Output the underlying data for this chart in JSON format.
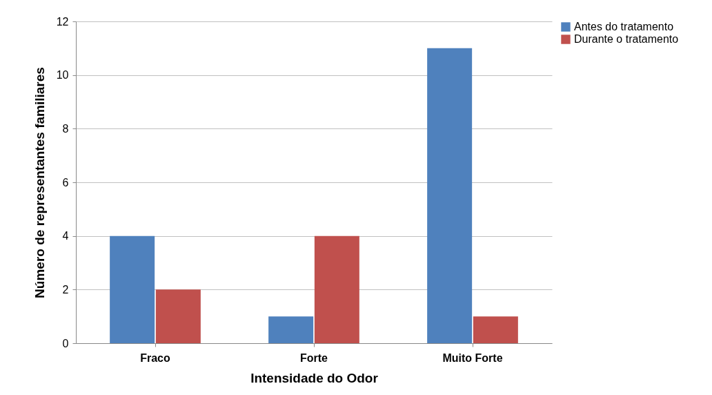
{
  "chart_data": {
    "type": "bar",
    "xlabel": "Intensidade do Odor",
    "ylabel": "Número de representantes familiares",
    "categories": [
      "Fraco",
      "Forte",
      "Muito Forte"
    ],
    "series": [
      {
        "name": "Antes do tratamento",
        "color": "#4f81bd",
        "values": [
          4,
          1,
          11
        ]
      },
      {
        "name": "Durante o tratamento",
        "color": "#c0504d",
        "values": [
          2,
          4,
          1
        ]
      }
    ],
    "ylim": [
      0,
      12
    ],
    "yticks": [
      0,
      2,
      4,
      6,
      8,
      10,
      12
    ],
    "grid": "y",
    "legend": "right"
  }
}
